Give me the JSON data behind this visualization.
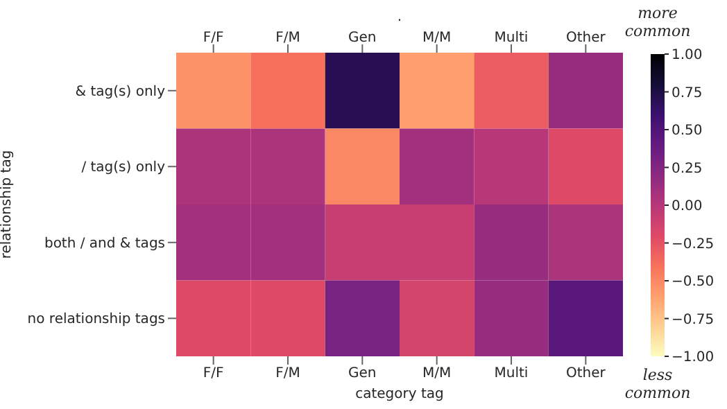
{
  "chart_data": {
    "type": "heatmap",
    "title": ".",
    "xlabel": "category tag",
    "ylabel": "relationship tag",
    "categories": [
      "F/F",
      "F/M",
      "Gen",
      "M/M",
      "Multi",
      "Other"
    ],
    "y_categories": [
      "& tag(s) only",
      "/ tag(s) only",
      "both / and & tags",
      "no relationship tags"
    ],
    "cells": [
      [
        -0.55,
        -0.4,
        0.7,
        -0.6,
        -0.3,
        0.15
      ],
      [
        0.05,
        0.05,
        -0.5,
        0.1,
        0.0,
        -0.2
      ],
      [
        0.1,
        0.1,
        -0.08,
        -0.08,
        0.15,
        0.05
      ],
      [
        -0.2,
        -0.2,
        0.3,
        -0.15,
        0.15,
        0.45
      ]
    ],
    "clim": [
      -1,
      1
    ],
    "cticks": [
      {
        "value": 1,
        "label": "1.00"
      },
      {
        "value": 0.75,
        "label": "0.75"
      },
      {
        "value": 0.5,
        "label": "0.50"
      },
      {
        "value": 0.25,
        "label": "0.25"
      },
      {
        "value": 0,
        "label": "0.00"
      },
      {
        "value": -0.25,
        "label": "−0.25"
      },
      {
        "value": -0.5,
        "label": "−0.50"
      },
      {
        "value": -0.75,
        "label": "−0.75"
      },
      {
        "value": -1,
        "label": "−1.00"
      }
    ],
    "annotations": [
      "more common",
      "less common"
    ]
  }
}
